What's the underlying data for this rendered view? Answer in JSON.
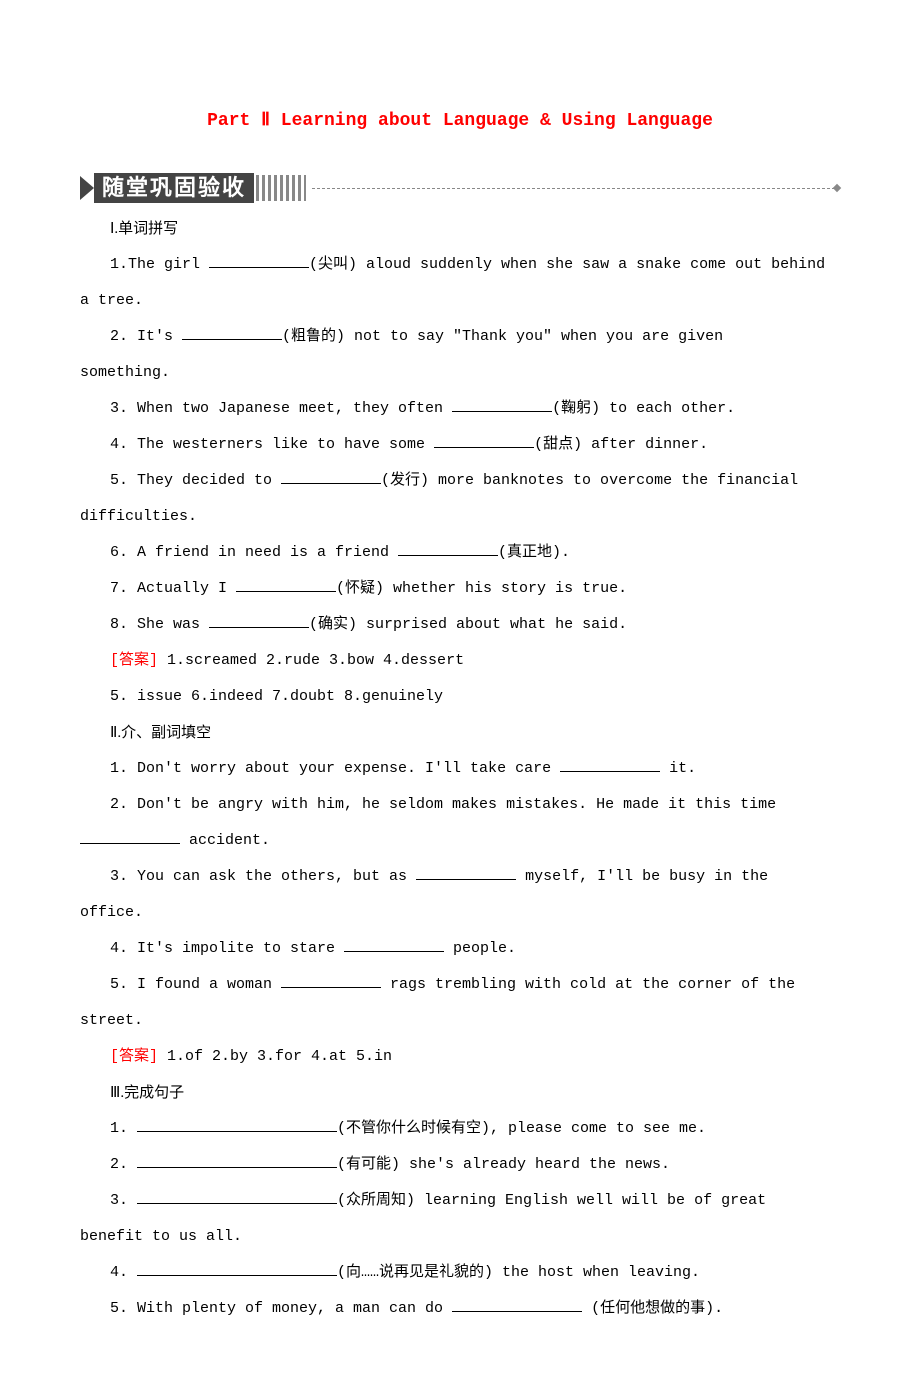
{
  "title": "Part Ⅱ Learning about Language & Using Language",
  "banner": "随堂巩固验收",
  "sections": {
    "s1": {
      "label": "Ⅰ.单词拼写",
      "q1a": "1.The girl ",
      "q1b": "(尖叫) aloud suddenly when she saw a snake come out behind",
      "q1c": "a tree.",
      "q2a": "2. It's ",
      "q2b": "(粗鲁的) not to say \"Thank you\" when you are given",
      "q2c": "something.",
      "q3a": "3. When two Japanese meet, they often ",
      "q3b": "(鞠躬) to each other.",
      "q4a": "4. The westerners like to have some ",
      "q4b": "(甜点) after dinner.",
      "q5a": "5. They decided to ",
      "q5b": "(发行) more banknotes to overcome the financial",
      "q5c": "difficulties.",
      "q6a": "6. A friend in need is a friend ",
      "q6b": "(真正地).",
      "q7a": "7. Actually I ",
      "q7b": "(怀疑) whether his story is true.",
      "q8a": "8. She was ",
      "q8b": "(确实) surprised about what he said.",
      "answerLabel": "[答案]",
      "answer1": " 1.screamed 2.rude 3.bow 4.dessert",
      "answer2": "5. issue 6.indeed 7.doubt 8.genuinely"
    },
    "s2": {
      "label": "Ⅱ.介、副词填空",
      "q1a": "1. Don't worry about your expense. I'll take care ",
      "q1b": " it.",
      "q2a": "2. Don't be angry with him, he seldom makes mistakes. He made it this time",
      "q2b": " accident.",
      "q3a": "3. You can ask the others, but as ",
      "q3b": " myself, I'll be busy in the",
      "q3c": "office.",
      "q4a": "4. It's impolite to stare ",
      "q4b": " people.",
      "q5a": "5. I found a woman ",
      "q5b": " rags trembling with cold at the corner of the",
      "q5c": "street.",
      "answerLabel": "[答案]",
      "answer1": " 1.of 2.by 3.for 4.at 5.in"
    },
    "s3": {
      "label": "Ⅲ.完成句子",
      "q1a": "1. ",
      "q1b": "(不管你什么时候有空), please come to see me.",
      "q2a": "2. ",
      "q2b": "(有可能) she's already heard the news.",
      "q3a": "3. ",
      "q3b": "(众所周知) learning English well will be of great",
      "q3c": "benefit to us all.",
      "q4a": "4. ",
      "q4b": "(向……说再见是礼貌的) the host when leaving.",
      "q5a": "5. With plenty of money, a man can do  ",
      "q5b": " (任何他想做的事)."
    }
  }
}
